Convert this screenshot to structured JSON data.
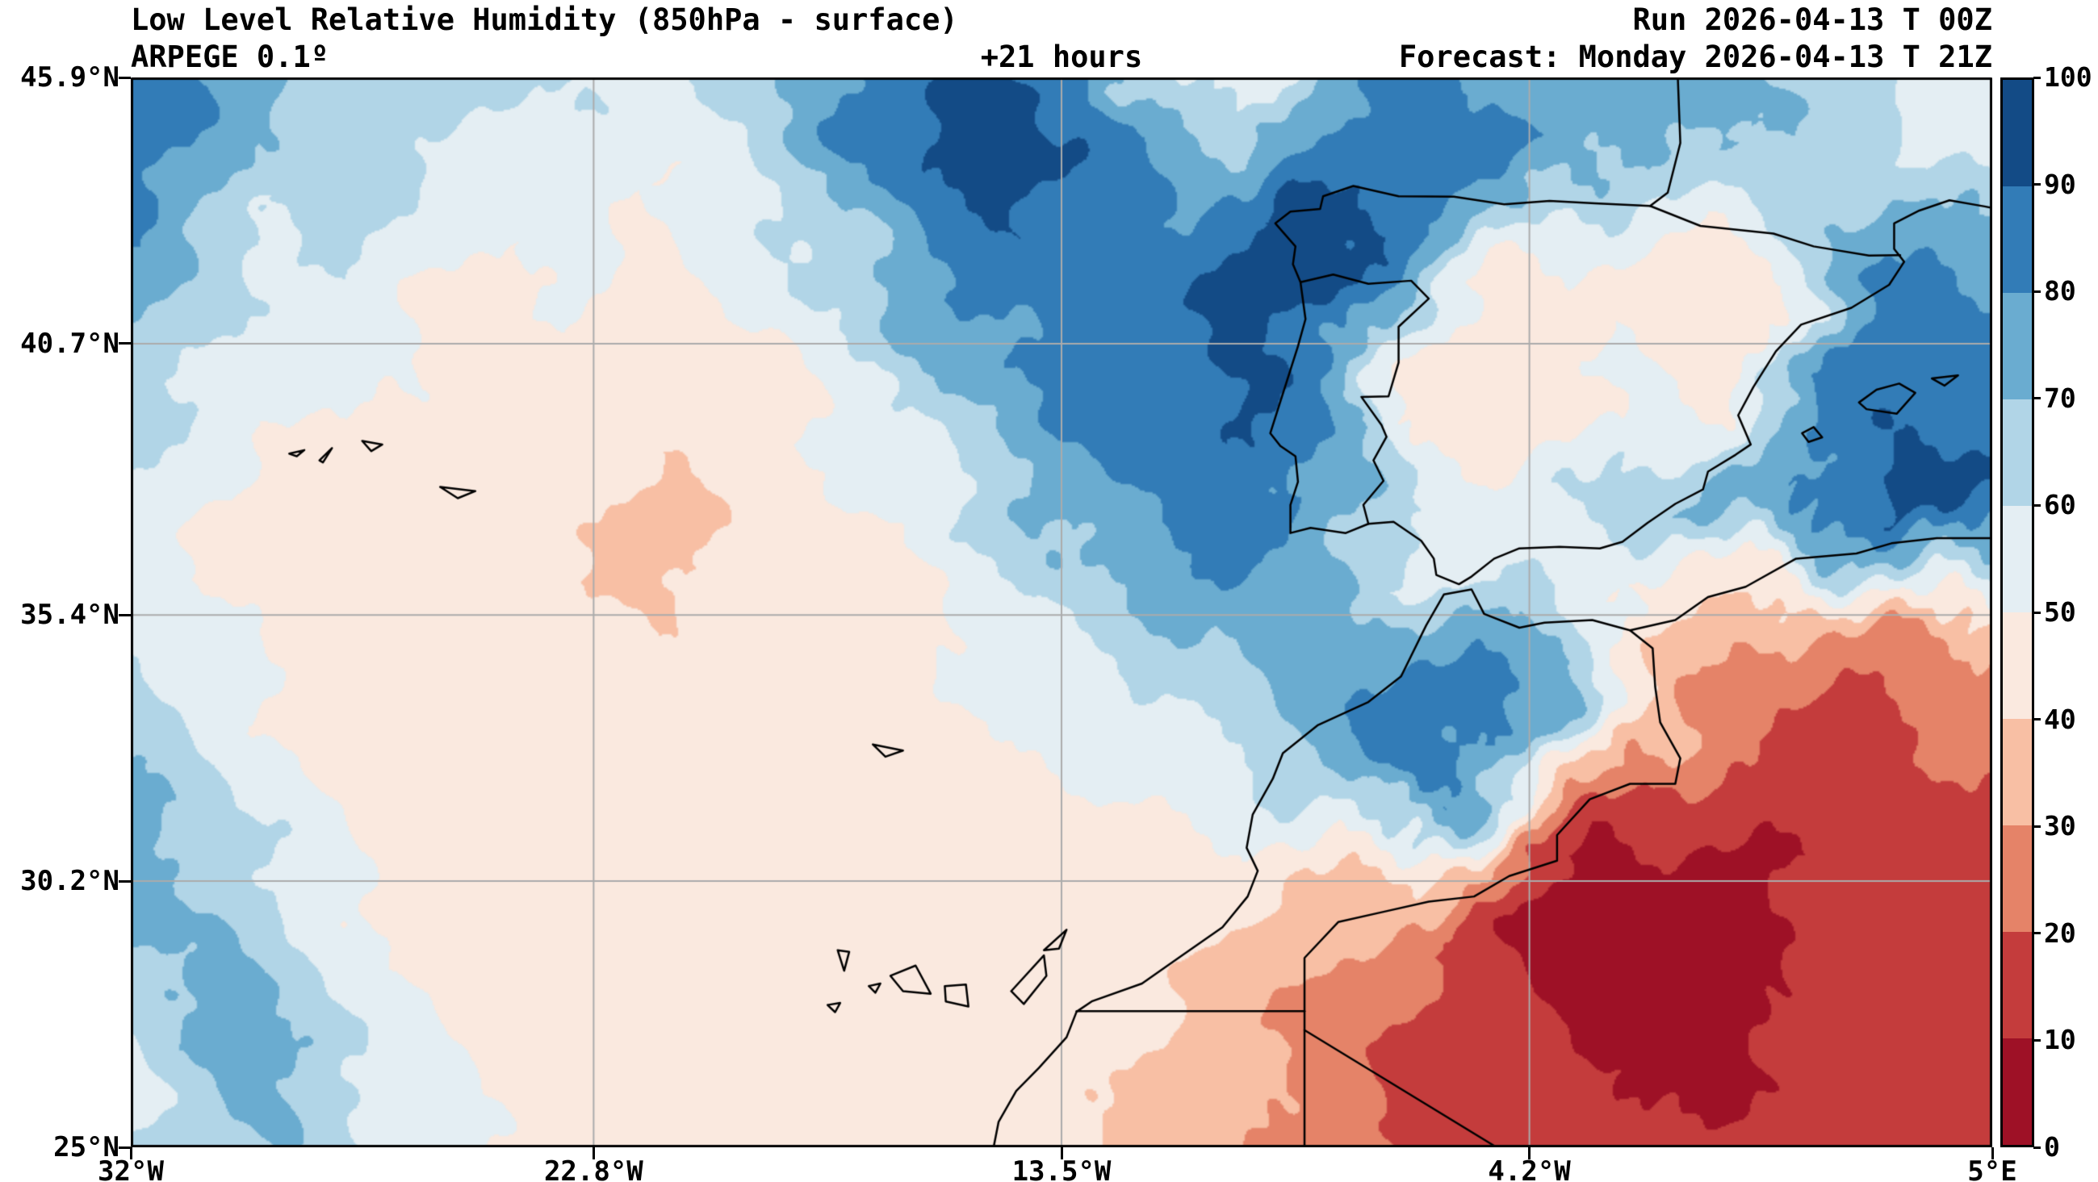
{
  "header": {
    "title": "Low Level Relative Humidity (850hPa - surface)",
    "model": "ARPEGE 0.1º",
    "lead_time": "+21 hours",
    "run": "Run 2026-04-13 T 00Z",
    "forecast": "Forecast: Monday 2026-04-13 T 21Z"
  },
  "chart_data": {
    "type": "heatmap",
    "title": "Low Level Relative Humidity (850hPa - surface)",
    "units": "%",
    "lon_range": [
      -32,
      5
    ],
    "lat_range": [
      25,
      45.9
    ],
    "gridline_color": "#ababab",
    "x_ticks": [
      {
        "label": "32°W",
        "lon": -32
      },
      {
        "label": "22.8°W",
        "lon": -22.8
      },
      {
        "label": "13.5°W",
        "lon": -13.5
      },
      {
        "label": "4.2°W",
        "lon": -4.2
      },
      {
        "label": "5°E",
        "lon": 5
      }
    ],
    "y_ticks": [
      {
        "label": "45.9°N",
        "lat": 45.9
      },
      {
        "label": "40.7°N",
        "lat": 40.7
      },
      {
        "label": "35.4°N",
        "lat": 35.4
      },
      {
        "label": "30.2°N",
        "lat": 30.2
      },
      {
        "label": "25°N",
        "lat": 25
      }
    ],
    "colorbar": {
      "min": 0,
      "max": 100,
      "tick_step": 10,
      "tick_labels": [
        "0",
        "10",
        "20",
        "30",
        "40",
        "50",
        "60",
        "70",
        "80",
        "90",
        "100"
      ],
      "bin_colors": [
        "#9e1126",
        "#c43c3c",
        "#e58368",
        "#f8bfa4",
        "#fae9df",
        "#e4eef3",
        "#b1d5e7",
        "#6aacd0",
        "#327cb7",
        "#134b86"
      ]
    },
    "grid": {
      "lons": [
        -32,
        -30.52,
        -29.04,
        -27.56,
        -26.08,
        -24.6,
        -23.12,
        -21.64,
        -20.16,
        -18.68,
        -17.2,
        -15.72,
        -14.24,
        -12.76,
        -11.28,
        -9.8,
        -8.32,
        -6.84,
        -5.36,
        -3.88,
        -2.4,
        -0.92,
        0.56,
        2.04,
        3.52,
        5
      ],
      "lats": [
        45.9,
        44.51,
        43.11,
        41.72,
        40.33,
        38.93,
        37.54,
        36.15,
        34.75,
        33.36,
        31.97,
        30.57,
        29.18,
        27.79,
        26.39,
        25
      ],
      "values": [
        [
          85,
          80,
          72,
          66,
          62,
          66,
          60,
          56,
          62,
          72,
          88,
          92,
          90,
          80,
          58,
          55,
          75,
          85,
          80,
          78,
          75,
          72,
          70,
          65,
          60,
          58
        ],
        [
          88,
          76,
          66,
          70,
          60,
          56,
          58,
          52,
          58,
          68,
          85,
          93,
          92,
          88,
          75,
          70,
          80,
          88,
          85,
          80,
          72,
          68,
          72,
          62,
          56,
          52
        ],
        [
          82,
          70,
          60,
          64,
          55,
          50,
          55,
          48,
          55,
          62,
          75,
          88,
          90,
          85,
          80,
          92,
          95,
          90,
          75,
          60,
          55,
          50,
          60,
          70,
          72,
          68
        ],
        [
          75,
          64,
          55,
          58,
          50,
          48,
          52,
          45,
          50,
          58,
          68,
          80,
          85,
          88,
          85,
          95,
          90,
          70,
          50,
          42,
          45,
          40,
          48,
          78,
          85,
          80
        ],
        [
          70,
          60,
          52,
          55,
          48,
          45,
          48,
          42,
          46,
          52,
          60,
          72,
          80,
          85,
          88,
          93,
          85,
          55,
          45,
          48,
          55,
          42,
          52,
          80,
          88,
          82
        ],
        [
          65,
          55,
          48,
          50,
          45,
          42,
          44,
          40,
          44,
          48,
          55,
          65,
          75,
          82,
          88,
          90,
          75,
          50,
          40,
          45,
          50,
          55,
          70,
          85,
          92,
          88
        ],
        [
          60,
          50,
          45,
          46,
          42,
          40,
          42,
          38,
          42,
          45,
          50,
          58,
          68,
          78,
          85,
          88,
          80,
          65,
          55,
          60,
          65,
          72,
          80,
          88,
          95,
          92
        ],
        [
          55,
          48,
          44,
          44,
          42,
          40,
          40,
          38,
          40,
          42,
          46,
          52,
          60,
          70,
          78,
          80,
          72,
          60,
          55,
          58,
          50,
          45,
          45,
          55,
          65,
          60
        ],
        [
          60,
          55,
          48,
          45,
          43,
          42,
          42,
          40,
          42,
          44,
          46,
          50,
          55,
          60,
          65,
          70,
          72,
          75,
          75,
          80,
          55,
          35,
          25,
          22,
          25,
          28
        ],
        [
          65,
          58,
          50,
          46,
          44,
          43,
          42,
          41,
          42,
          43,
          45,
          48,
          52,
          56,
          60,
          66,
          75,
          88,
          90,
          70,
          45,
          28,
          20,
          18,
          20,
          24
        ],
        [
          72,
          62,
          55,
          48,
          45,
          44,
          43,
          42,
          43,
          44,
          45,
          46,
          48,
          50,
          52,
          56,
          65,
          85,
          75,
          45,
          25,
          18,
          14,
          13,
          16,
          20
        ],
        [
          78,
          68,
          58,
          50,
          46,
          45,
          44,
          43,
          43,
          44,
          44,
          45,
          46,
          47,
          48,
          46,
          42,
          48,
          38,
          10,
          5,
          7,
          9,
          11,
          14,
          16
        ],
        [
          70,
          72,
          62,
          52,
          48,
          46,
          45,
          44,
          44,
          45,
          44,
          44,
          45,
          44,
          42,
          38,
          32,
          25,
          18,
          7,
          5,
          8,
          10,
          12,
          14,
          16
        ],
        [
          60,
          75,
          70,
          55,
          50,
          46,
          45,
          44,
          44,
          44,
          43,
          43,
          43,
          42,
          40,
          35,
          28,
          22,
          14,
          10,
          8,
          9,
          10,
          11,
          13,
          14
        ],
        [
          55,
          70,
          78,
          60,
          52,
          48,
          46,
          45,
          44,
          44,
          43,
          42,
          42,
          41,
          38,
          32,
          25,
          18,
          13,
          11,
          9,
          9,
          10,
          11,
          12,
          13
        ],
        [
          60,
          65,
          72,
          62,
          55,
          50,
          48,
          46,
          45,
          44,
          43,
          42,
          41,
          40,
          36,
          30,
          24,
          18,
          14,
          12,
          11,
          11,
          12,
          13,
          14,
          15
        ]
      ]
    },
    "coastlines": [
      [
        [
          -1.25,
          45.9
        ],
        [
          -1.2,
          44.62
        ],
        [
          -1.45,
          43.65
        ],
        [
          -1.8,
          43.39
        ],
        [
          -2.9,
          43.44
        ],
        [
          -3.8,
          43.49
        ],
        [
          -4.7,
          43.42
        ],
        [
          -5.7,
          43.57
        ],
        [
          -6.8,
          43.58
        ],
        [
          -7.7,
          43.78
        ],
        [
          -8.3,
          43.58
        ],
        [
          -8.36,
          43.33
        ],
        [
          -8.95,
          43.28
        ],
        [
          -9.25,
          43.05
        ],
        [
          -8.85,
          42.6
        ],
        [
          -8.9,
          42.25
        ],
        [
          -8.75,
          41.9
        ],
        [
          -8.65,
          41.18
        ],
        [
          -8.8,
          40.65
        ],
        [
          -9.35,
          38.95
        ],
        [
          -9.15,
          38.7
        ],
        [
          -8.85,
          38.5
        ],
        [
          -8.8,
          38.0
        ],
        [
          -8.95,
          37.55
        ],
        [
          -8.95,
          37.0
        ],
        [
          -8.55,
          37.1
        ],
        [
          -7.85,
          37.0
        ],
        [
          -7.4,
          37.18
        ],
        [
          -6.9,
          37.22
        ],
        [
          -6.35,
          36.85
        ],
        [
          -6.1,
          36.5
        ],
        [
          -6.05,
          36.18
        ],
        [
          -5.6,
          36.0
        ],
        [
          -5.35,
          36.15
        ],
        [
          -4.9,
          36.5
        ],
        [
          -4.4,
          36.7
        ],
        [
          -3.6,
          36.73
        ],
        [
          -2.8,
          36.7
        ],
        [
          -2.35,
          36.83
        ],
        [
          -1.85,
          37.2
        ],
        [
          -1.3,
          37.57
        ],
        [
          -0.75,
          37.85
        ],
        [
          -0.65,
          38.2
        ],
        [
          -0.1,
          38.53
        ],
        [
          0.2,
          38.73
        ],
        [
          -0.05,
          39.3
        ],
        [
          0.25,
          39.85
        ],
        [
          0.7,
          40.55
        ],
        [
          1.2,
          41.07
        ],
        [
          2.2,
          41.4
        ],
        [
          2.95,
          41.85
        ],
        [
          3.25,
          42.3
        ],
        [
          3.05,
          42.55
        ],
        [
          3.05,
          43.05
        ],
        [
          3.55,
          43.3
        ],
        [
          4.15,
          43.5
        ],
        [
          4.85,
          43.38
        ],
        [
          5,
          43.35
        ]
      ],
      [
        [
          -8.75,
          41.9
        ],
        [
          -8.1,
          42.05
        ],
        [
          -7.4,
          41.87
        ],
        [
          -6.55,
          41.93
        ],
        [
          -6.2,
          41.58
        ],
        [
          -6.8,
          41.03
        ],
        [
          -6.8,
          40.33
        ],
        [
          -7.0,
          39.67
        ],
        [
          -7.54,
          39.66
        ],
        [
          -7.14,
          39.11
        ],
        [
          -7.04,
          38.88
        ],
        [
          -7.3,
          38.42
        ],
        [
          -7.1,
          38.02
        ],
        [
          -7.5,
          37.55
        ],
        [
          -7.4,
          37.18
        ]
      ],
      [
        [
          -1.8,
          43.39
        ],
        [
          -0.8,
          43.0
        ],
        [
          0.65,
          42.85
        ],
        [
          1.45,
          42.6
        ],
        [
          2.55,
          42.42
        ],
        [
          3.17,
          42.43
        ]
      ],
      [
        [
          5,
          36.9
        ],
        [
          3.9,
          36.9
        ],
        [
          3.0,
          36.8
        ],
        [
          2.3,
          36.6
        ],
        [
          1.1,
          36.5
        ],
        [
          0.1,
          35.95
        ],
        [
          -0.65,
          35.75
        ],
        [
          -1.3,
          35.3
        ],
        [
          -2.2,
          35.1
        ],
        [
          -2.95,
          35.3
        ],
        [
          -3.9,
          35.25
        ],
        [
          -4.4,
          35.15
        ],
        [
          -5.1,
          35.42
        ],
        [
          -5.35,
          35.9
        ],
        [
          -5.9,
          35.8
        ],
        [
          -6.25,
          35.2
        ],
        [
          -6.75,
          34.2
        ],
        [
          -7.4,
          33.7
        ],
        [
          -8.4,
          33.25
        ],
        [
          -9.1,
          32.7
        ],
        [
          -9.3,
          32.2
        ],
        [
          -9.7,
          31.5
        ],
        [
          -9.82,
          30.85
        ],
        [
          -9.6,
          30.4
        ],
        [
          -9.8,
          29.9
        ],
        [
          -10.3,
          29.3
        ],
        [
          -11.1,
          28.75
        ],
        [
          -11.9,
          28.2
        ],
        [
          -12.9,
          27.85
        ],
        [
          -13.2,
          27.65
        ],
        [
          -13.4,
          27.15
        ],
        [
          -13.95,
          26.55
        ],
        [
          -14.4,
          26.1
        ],
        [
          -14.75,
          25.5
        ],
        [
          -14.85,
          25.0
        ]
      ],
      [
        [
          -2.2,
          35.1
        ],
        [
          -1.75,
          34.75
        ],
        [
          -1.7,
          34.0
        ],
        [
          -1.6,
          33.3
        ],
        [
          -1.2,
          32.6
        ],
        [
          -1.3,
          32.1
        ],
        [
          -2.2,
          32.1
        ],
        [
          -3.0,
          31.8
        ],
        [
          -3.65,
          31.1
        ],
        [
          -3.65,
          30.6
        ],
        [
          -4.6,
          30.3
        ],
        [
          -5.3,
          29.9
        ],
        [
          -6.2,
          29.8
        ],
        [
          -7.1,
          29.6
        ],
        [
          -8.0,
          29.4
        ],
        [
          -8.67,
          28.7
        ],
        [
          -8.67,
          27.66
        ]
      ],
      [
        [
          -13.2,
          27.66
        ],
        [
          -8.67,
          27.66
        ]
      ],
      [
        [
          -8.67,
          27.66
        ],
        [
          -8.67,
          25.0
        ]
      ],
      [
        [
          -8.67,
          27.29
        ],
        [
          -4.85,
          25.0
        ]
      ],
      [
        [
          -17.95,
          28.85
        ],
        [
          -17.72,
          28.82
        ],
        [
          -17.82,
          28.45
        ],
        [
          -17.95,
          28.85
        ]
      ],
      [
        [
          -18.15,
          27.78
        ],
        [
          -17.9,
          27.82
        ],
        [
          -18.0,
          27.64
        ],
        [
          -18.15,
          27.78
        ]
      ],
      [
        [
          -17.33,
          28.15
        ],
        [
          -17.1,
          28.2
        ],
        [
          -17.2,
          28.02
        ],
        [
          -17.33,
          28.15
        ]
      ],
      [
        [
          -16.9,
          28.35
        ],
        [
          -16.4,
          28.55
        ],
        [
          -16.1,
          28.0
        ],
        [
          -16.65,
          28.05
        ],
        [
          -16.9,
          28.35
        ]
      ],
      [
        [
          -15.82,
          28.15
        ],
        [
          -15.4,
          28.18
        ],
        [
          -15.35,
          27.75
        ],
        [
          -15.8,
          27.85
        ],
        [
          -15.82,
          28.15
        ]
      ],
      [
        [
          -14.5,
          28.05
        ],
        [
          -13.85,
          28.75
        ],
        [
          -13.8,
          28.35
        ],
        [
          -14.25,
          27.8
        ],
        [
          -14.5,
          28.05
        ]
      ],
      [
        [
          -13.85,
          28.85
        ],
        [
          -13.4,
          29.25
        ],
        [
          -13.55,
          28.88
        ],
        [
          -13.85,
          28.85
        ]
      ],
      [
        [
          -17.25,
          32.87
        ],
        [
          -16.65,
          32.75
        ],
        [
          -17.0,
          32.63
        ],
        [
          -17.25,
          32.87
        ]
      ],
      [
        [
          -28.85,
          38.55
        ],
        [
          -28.55,
          38.62
        ],
        [
          -28.7,
          38.5
        ],
        [
          -28.85,
          38.55
        ]
      ],
      [
        [
          -28.25,
          38.42
        ],
        [
          -28.0,
          38.66
        ],
        [
          -28.18,
          38.38
        ],
        [
          -28.25,
          38.42
        ]
      ],
      [
        [
          -27.4,
          38.8
        ],
        [
          -27.0,
          38.73
        ],
        [
          -27.22,
          38.6
        ],
        [
          -27.4,
          38.8
        ]
      ],
      [
        [
          -25.85,
          37.9
        ],
        [
          -25.15,
          37.82
        ],
        [
          -25.5,
          37.68
        ],
        [
          -25.85,
          37.9
        ]
      ],
      [
        [
          1.22,
          38.95
        ],
        [
          1.45,
          39.07
        ],
        [
          1.62,
          38.87
        ],
        [
          1.35,
          38.78
        ],
        [
          1.22,
          38.95
        ]
      ],
      [
        [
          2.35,
          39.55
        ],
        [
          2.7,
          39.8
        ],
        [
          3.15,
          39.92
        ],
        [
          3.47,
          39.74
        ],
        [
          3.1,
          39.33
        ],
        [
          2.5,
          39.42
        ],
        [
          2.35,
          39.55
        ]
      ],
      [
        [
          3.8,
          40.02
        ],
        [
          4.32,
          40.08
        ],
        [
          4.05,
          39.88
        ],
        [
          3.8,
          40.02
        ]
      ]
    ]
  }
}
